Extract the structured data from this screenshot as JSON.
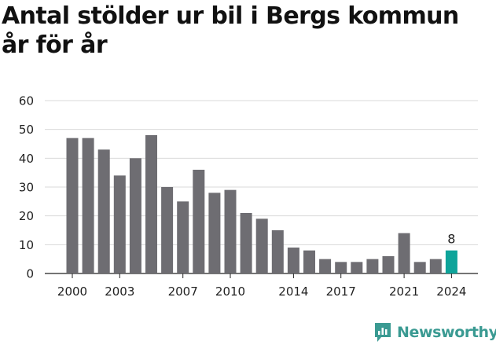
{
  "chart_data": {
    "type": "bar",
    "title": "Antal stölder ur bil i Bergs kommun år för år",
    "years": [
      2000,
      2001,
      2002,
      2003,
      2004,
      2005,
      2006,
      2007,
      2008,
      2009,
      2010,
      2011,
      2012,
      2013,
      2014,
      2015,
      2016,
      2017,
      2018,
      2019,
      2020,
      2021,
      2022,
      2023,
      2024
    ],
    "values": [
      47,
      47,
      43,
      34,
      40,
      48,
      30,
      25,
      36,
      28,
      29,
      21,
      19,
      15,
      9,
      8,
      5,
      4,
      4,
      5,
      6,
      14,
      4,
      5,
      8
    ],
    "x_tick_labels": [
      "2000",
      "2003",
      "2007",
      "2010",
      "2014",
      "2017",
      "2021",
      "2024"
    ],
    "y_ticks": [
      0,
      10,
      20,
      30,
      40,
      50,
      60
    ],
    "ylim": [
      0,
      60
    ],
    "highlight_year": 2024,
    "highlight_label": "8",
    "grid": true,
    "legend": "none",
    "colors": {
      "bar": "#6e6d72",
      "highlight": "#0ea49a",
      "grid": "#d9d9d9",
      "text": "#222222"
    }
  },
  "branding": {
    "logo_text": "Newsworthy",
    "logo_color": "#3a9a92"
  }
}
